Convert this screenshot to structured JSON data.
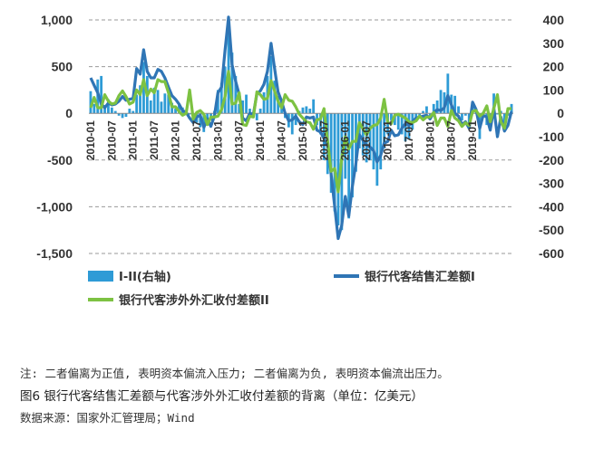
{
  "chart_data": {
    "type": "bar",
    "y_left": {
      "ylim": [
        -1500,
        1000
      ],
      "ticks": [
        1000,
        500,
        0,
        -500,
        -1000,
        -1500
      ],
      "tick_labels": [
        "1,000",
        "500",
        "0",
        "-500",
        "-1,000",
        "-1,500"
      ]
    },
    "y_right": {
      "ylim": [
        -600,
        400
      ],
      "ticks": [
        400,
        300,
        200,
        100,
        0,
        -100,
        -200,
        -300,
        -400,
        -500,
        -600
      ],
      "tick_labels": [
        "400",
        "300",
        "200",
        "100",
        "0",
        "-100",
        "-200",
        "-300",
        "-400",
        "-500",
        "-600"
      ]
    },
    "x_start": "2010-01",
    "x_tick_labels": [
      "2010-01",
      "2010-07",
      "2011-01",
      "2011-07",
      "2012-01",
      "2012-07",
      "2013-01",
      "2013-07",
      "2014-01",
      "2014-07",
      "2015-01",
      "2015-07",
      "2016-01",
      "2016-07",
      "2017-01",
      "2017-07",
      "2018-01",
      "2018-07",
      "2019-01"
    ],
    "x_tick_every": 6,
    "grid": "horizontal dashed",
    "legend_position": "bottom",
    "series": [
      {
        "name": "I-II(右轴)",
        "kind": "bar",
        "axis": "right",
        "color": "#2e9bd6",
        "values": [
          95,
          40,
          145,
          160,
          35,
          60,
          25,
          10,
          -10,
          -20,
          -15,
          20,
          10,
          80,
          120,
          220,
          160,
          55,
          110,
          100,
          50,
          85,
          80,
          45,
          20,
          35,
          25,
          10,
          -5,
          -20,
          -40,
          -60,
          -80,
          -40,
          -30,
          10,
          100,
          130,
          200,
          380,
          260,
          160,
          40,
          55,
          80,
          20,
          -10,
          -30,
          20,
          90,
          160,
          245,
          140,
          75,
          30,
          -20,
          -60,
          -90,
          -50,
          10,
          25,
          30,
          20,
          60,
          -50,
          -90,
          -200,
          -260,
          -340,
          -420,
          -480,
          -500,
          -280,
          -450,
          -360,
          -250,
          -150,
          -180,
          -210,
          -200,
          -240,
          -310,
          -240,
          -150,
          -90,
          -30,
          -50,
          -70,
          -90,
          -120,
          -110,
          -70,
          -30,
          -10,
          10,
          30,
          -20,
          40,
          55,
          100,
          90,
          170,
          80,
          75,
          30,
          -30,
          -10,
          -40,
          45,
          5,
          -110,
          5,
          -50,
          -60,
          85,
          -5,
          10,
          -70,
          -10,
          40
        ]
      },
      {
        "name": "银行代客结售汇差额I",
        "kind": "line",
        "axis": "left",
        "color": "#2f75b5",
        "values": [
          380,
          300,
          220,
          100,
          60,
          110,
          90,
          100,
          130,
          180,
          140,
          150,
          160,
          480,
          420,
          680,
          450,
          380,
          380,
          470,
          450,
          380,
          280,
          190,
          150,
          100,
          30,
          10,
          -50,
          -100,
          -40,
          -20,
          -150,
          -60,
          -140,
          -30,
          220,
          280,
          680,
          1030,
          520,
          340,
          200,
          -50,
          -80,
          0,
          -10,
          210,
          240,
          310,
          450,
          750,
          480,
          230,
          130,
          0,
          -80,
          -70,
          -30,
          -90,
          -120,
          -40,
          -50,
          -40,
          -180,
          -200,
          -270,
          -350,
          -650,
          -1000,
          -1340,
          -1200,
          -890,
          -1100,
          -780,
          -540,
          -230,
          -290,
          -340,
          -360,
          -400,
          -520,
          -450,
          -320,
          -300,
          -180,
          -240,
          -230,
          -160,
          -110,
          -130,
          -90,
          -50,
          -40,
          -30,
          -20,
          -60,
          10,
          40,
          30,
          60,
          190,
          90,
          0,
          -30,
          -120,
          -90,
          -160,
          120,
          40,
          -160,
          -20,
          -40,
          -180,
          60,
          -250,
          -40,
          -190,
          -130,
          20
        ]
      },
      {
        "name": "银行代客涉外外汇收付差额II",
        "kind": "line",
        "axis": "left",
        "color": "#7dc242",
        "values": [
          60,
          170,
          60,
          60,
          200,
          130,
          100,
          110,
          190,
          240,
          180,
          100,
          120,
          250,
          200,
          360,
          190,
          260,
          220,
          360,
          340,
          340,
          220,
          70,
          70,
          20,
          -20,
          0,
          250,
          -60,
          10,
          30,
          -10,
          -120,
          -40,
          -40,
          -30,
          40,
          180,
          450,
          100,
          110,
          220,
          -120,
          -130,
          -30,
          -40,
          230,
          200,
          150,
          160,
          350,
          240,
          130,
          60,
          200,
          140,
          130,
          70,
          -10,
          -50,
          -90,
          -100,
          -170,
          -70,
          -60,
          50,
          -300,
          -620,
          -590,
          -840,
          -480,
          -250,
          -380,
          -300,
          -300,
          -100,
          -170,
          -230,
          -160,
          -130,
          -120,
          -50,
          150,
          -100,
          -110,
          -20,
          -10,
          -30,
          -50,
          -90,
          -100,
          -80,
          -30,
          -70,
          -40,
          -40,
          10,
          -130,
          -50,
          -50,
          -140,
          30,
          -50,
          -80,
          -140,
          -100,
          -130,
          20,
          30,
          -30,
          0,
          80,
          -90,
          50,
          200,
          -90,
          -160,
          50,
          50
        ]
      }
    ]
  },
  "legend": {
    "bar_label": "I-II(右轴)",
    "line1_label": "银行代客结售汇差额I",
    "line2_label": "银行代客涉外外汇收付差额II"
  },
  "captions": {
    "note": "注: 二者偏离为正值, 表明资本偏流入压力; 二者偏离为负, 表明资本偏流出压力。",
    "title": "图6  银行代客结售汇差额与代客涉外外汇收付差额的背离（单位：亿美元）",
    "source": "数据来源：国家外汇管理局；Wind"
  }
}
